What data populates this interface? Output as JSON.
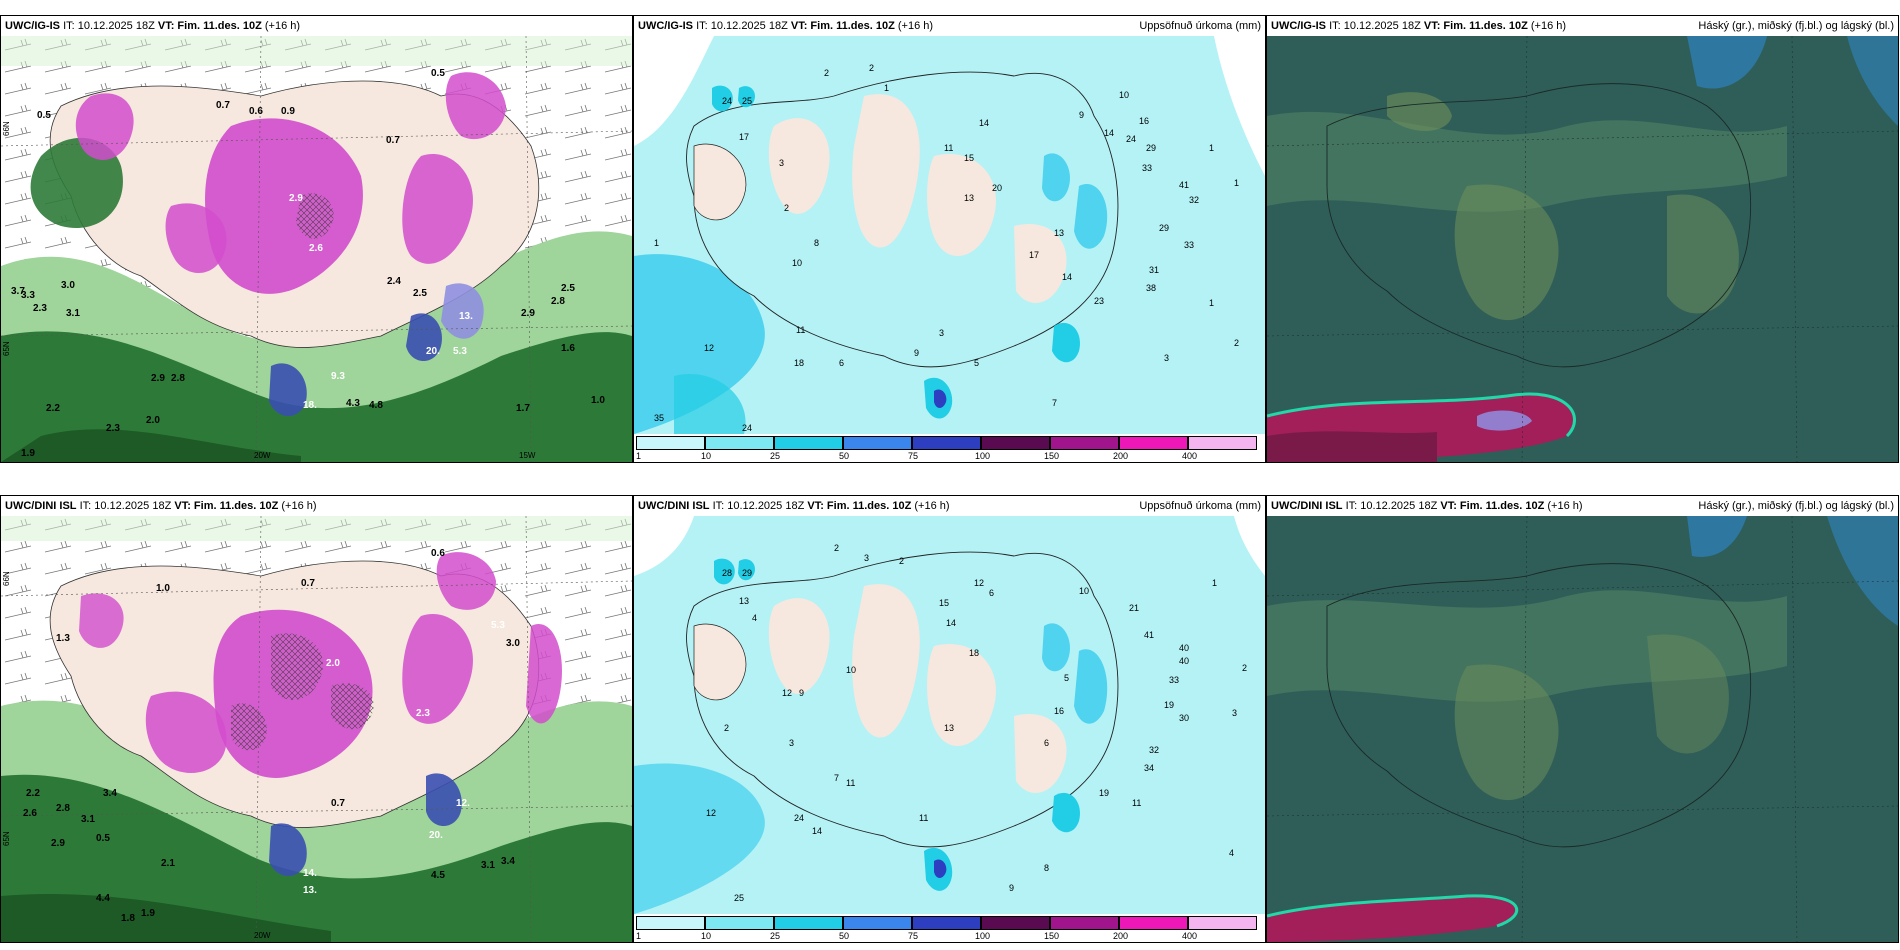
{
  "panels": {
    "top_left": {
      "model": "UWC/IG-IS",
      "it": "IT: 10.12.2025 18Z",
      "vt_label": "VT:",
      "vt": "Fim. 11.des. 10Z",
      "lead": "(+16 h)"
    },
    "top_mid": {
      "model": "UWC/IG-IS",
      "it": "IT: 10.12.2025 18Z",
      "vt_label": "VT:",
      "vt": "Fim. 11.des. 10Z",
      "lead": "(+16 h)",
      "right": "Uppsöfnuð úrkoma (mm)"
    },
    "top_right": {
      "model": "UWC/IG-IS",
      "it": "IT: 10.12.2025 18Z",
      "vt_label": "VT:",
      "vt": "Fim. 11.des. 10Z",
      "lead": "(+16 h)",
      "right": "Háský (gr.), miðský (fj.bl.) og lágský (bl.)"
    },
    "bottom_left": {
      "model": "UWC/DINI ISL",
      "it": "IT: 10.12.2025 18Z",
      "vt_label": "VT:",
      "vt": "Fim. 11.des. 10Z",
      "lead": "(+16 h)"
    },
    "bottom_mid": {
      "model": "UWC/DINI ISL",
      "it": "IT: 10.12.2025 18Z",
      "vt_label": "VT:",
      "vt": "Fim. 11.des. 10Z",
      "lead": "(+16 h)",
      "right": "Uppsöfnuð úrkoma (mm)"
    },
    "bottom_right": {
      "model": "UWC/DINI ISL",
      "it": "IT: 10.12.2025 18Z",
      "vt_label": "VT:",
      "vt": "Fim. 11.des. 10Z",
      "lead": "(+16 h)",
      "right": "Háský (gr.), miðský (fj.bl.) og lágský (bl.)"
    }
  },
  "axis_labels": {
    "lon_20w": "20W",
    "lon_15w": "15W",
    "lat_66n": "66N",
    "lat_65n": "65N"
  },
  "legend": {
    "labels": [
      "1",
      "10",
      "25",
      "50",
      "75",
      "100",
      "150",
      "200",
      "400"
    ],
    "colors": [
      "#c8f6fa",
      "#7ee8f2",
      "#22cde6",
      "#3a86ec",
      "#2d3fc0",
      "#5a0a50",
      "#a0148c",
      "#ee18b8",
      "#f4b4f0"
    ]
  },
  "colors": {
    "land": "#f6e8de",
    "precip_light": "#b4f2f6",
    "precip_mid": "#4fd3ee",
    "cloud_low": "#2f5e58",
    "cloud_mid": "#4b7d62",
    "green_dark": "#256a30",
    "green_light": "#d6f2d0",
    "magenta": "#d24ccc"
  },
  "top_left_values": [
    "0.5",
    "0.7",
    "0.6",
    "0.9",
    "0.7",
    "0.5",
    "2.9",
    "2.6",
    "3.0",
    "2.4",
    "2.5",
    "3.7",
    "3.1",
    "3.3",
    "2.3",
    "2.2",
    "2.0",
    "1.7",
    "1.0",
    "1.9",
    "2.3",
    "2.9",
    "2.8",
    "4.3",
    "4.8",
    "18.",
    "20.",
    "5.3",
    "13.",
    "9.3",
    "1.6",
    "2.5",
    "2.8",
    "2.9"
  ],
  "bottom_left_values": [
    "0.6",
    "1.0",
    "0.7",
    "2.0",
    "3.0",
    "2.2",
    "2.6",
    "2.8",
    "3.1",
    "3.4",
    "2.9",
    "4.4",
    "1.8",
    "1.9",
    "2.1",
    "0.5",
    "0.7",
    "4.5",
    "3.1",
    "3.4",
    "14.",
    "13.",
    "20.",
    "12.",
    "5.3",
    "1.3",
    "2.3"
  ],
  "top_mid_values": [
    "2",
    "2",
    "1",
    "24",
    "25",
    "17",
    "1",
    "12",
    "35",
    "24",
    "3",
    "10",
    "8",
    "2",
    "11",
    "18",
    "6",
    "9",
    "3",
    "11",
    "14",
    "15",
    "13",
    "20",
    "9",
    "10",
    "14",
    "24",
    "16",
    "29",
    "33",
    "41",
    "32",
    "33",
    "29",
    "31",
    "38",
    "17",
    "14",
    "23",
    "13",
    "1",
    "2",
    "3",
    "7",
    "5",
    "1",
    "1"
  ],
  "bottom_mid_values": [
    "2",
    "3",
    "2",
    "28",
    "29",
    "13",
    "12",
    "3",
    "4",
    "2",
    "12",
    "9",
    "7",
    "11",
    "10",
    "15",
    "14",
    "18",
    "13",
    "12",
    "6",
    "10",
    "21",
    "41",
    "40",
    "40",
    "33",
    "19",
    "30",
    "32",
    "34",
    "16",
    "19",
    "11",
    "25",
    "24",
    "14",
    "8",
    "11",
    "9",
    "1",
    "2",
    "3",
    "4",
    "5",
    "6"
  ]
}
